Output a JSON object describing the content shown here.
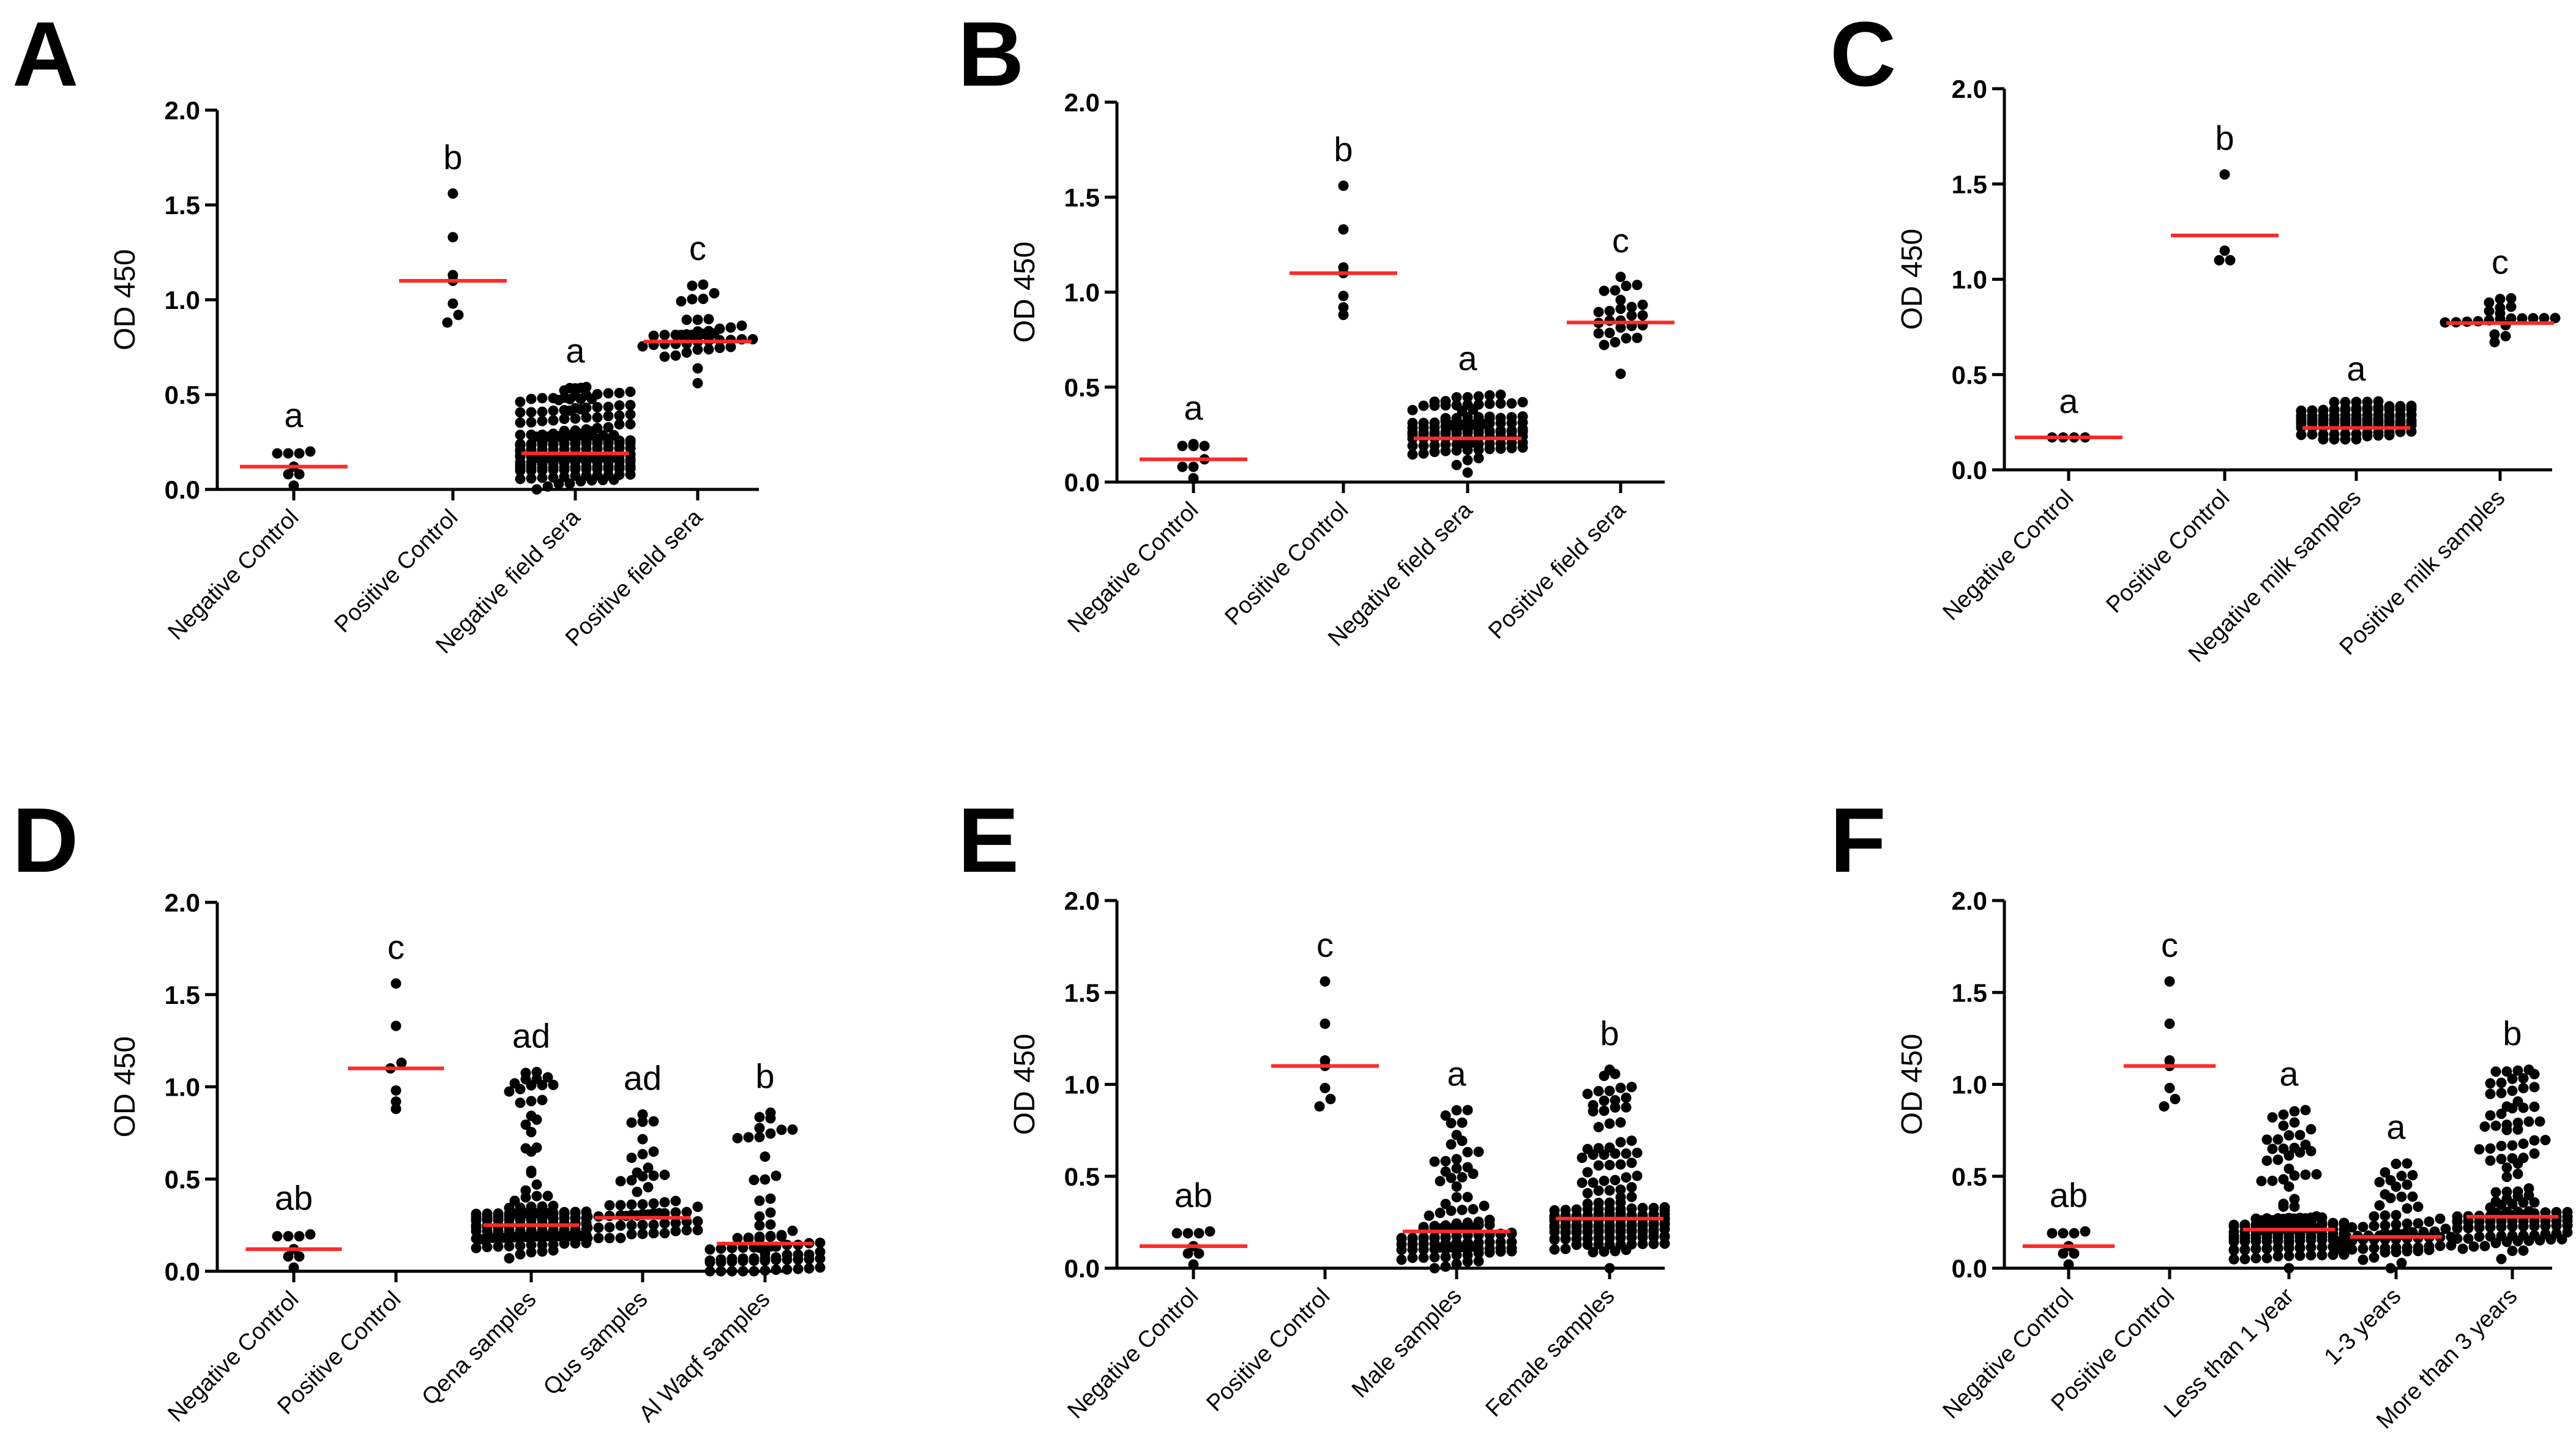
{
  "chart_data": [
    {
      "type": "scatter",
      "panel": "A",
      "ylabel": "OD 450",
      "ylim": [
        0,
        2.0
      ],
      "yticks": [
        "0.0",
        "0.5",
        "1.0",
        "1.5",
        "2.0"
      ],
      "categories": [
        "Negative Control",
        "Positive Control",
        "Negative field sera",
        "Positive field sera"
      ],
      "means": [
        0.12,
        1.1,
        0.19,
        0.78
      ],
      "significance": [
        "a",
        "b",
        "a",
        "c"
      ],
      "points": [
        [
          0.02,
          0.08,
          0.08,
          0.12,
          0.19,
          0.19,
          0.19,
          0.2
        ],
        [
          0.88,
          0.92,
          0.98,
          1.1,
          1.13,
          1.33,
          1.56
        ],
        {
          "n": 220,
          "min": 0.0,
          "max": 0.54,
          "mode": 0.15
        },
        {
          "n": 40,
          "min": 0.56,
          "max": 1.08,
          "mode": 0.78
        }
      ]
    },
    {
      "type": "scatter",
      "panel": "B",
      "ylabel": "OD 450",
      "ylim": [
        0,
        2.0
      ],
      "yticks": [
        "0.0",
        "0.5",
        "1.0",
        "1.5",
        "2.0"
      ],
      "categories": [
        "Negative Control",
        "Positive Control",
        "Negative field sera",
        "Positive field sera"
      ],
      "means": [
        0.12,
        1.1,
        0.23,
        0.84
      ],
      "significance": [
        "a",
        "b",
        "a",
        "c"
      ],
      "points": [
        [
          0.02,
          0.08,
          0.08,
          0.12,
          0.19,
          0.19,
          0.19,
          0.2
        ],
        [
          0.88,
          0.92,
          0.98,
          1.1,
          1.13,
          1.33,
          1.56
        ],
        {
          "n": 110,
          "min": 0.05,
          "max": 0.46,
          "mode": 0.22
        },
        {
          "n": 24,
          "min": 0.57,
          "max": 1.08,
          "mode": 0.84
        }
      ]
    },
    {
      "type": "scatter",
      "panel": "C",
      "ylabel": "OD 450",
      "ylim": [
        0,
        2.0
      ],
      "yticks": [
        "0.0",
        "0.5",
        "1.0",
        "1.5",
        "2.0"
      ],
      "categories": [
        "Negative Control",
        "Positive Control",
        "Negative milk samples",
        "Positive milk samples"
      ],
      "means": [
        0.17,
        1.23,
        0.22,
        0.77
      ],
      "significance": [
        "a",
        "b",
        "a",
        "c"
      ],
      "points": [
        [
          0.17,
          0.17,
          0.17,
          0.17
        ],
        [
          1.1,
          1.1,
          1.15,
          1.55
        ],
        {
          "n": 110,
          "min": 0.16,
          "max": 0.34,
          "mode": 0.22
        },
        {
          "n": 20,
          "min": 0.67,
          "max": 0.9,
          "mode": 0.77
        }
      ]
    },
    {
      "type": "scatter",
      "panel": "D",
      "ylabel": "OD 450",
      "ylim": [
        0,
        2.0
      ],
      "yticks": [
        "0.0",
        "0.5",
        "1.0",
        "1.5",
        "2.0"
      ],
      "categories": [
        "Negative Control",
        "Positive Control",
        "Qena samples",
        "Qus samples",
        "Al Waqf samples"
      ],
      "means": [
        0.12,
        1.1,
        0.25,
        0.29,
        0.15
      ],
      "significance": [
        "ab",
        "c",
        "ad",
        "ad",
        "b"
      ],
      "points": [
        [
          0.02,
          0.08,
          0.08,
          0.12,
          0.19,
          0.19,
          0.19,
          0.2
        ],
        [
          0.88,
          0.92,
          0.98,
          1.1,
          1.13,
          1.33,
          1.56
        ],
        {
          "n": 150,
          "min": 0.07,
          "max": 1.08,
          "mode": 0.22
        },
        {
          "n": 60,
          "min": 0.18,
          "max": 0.85,
          "mode": 0.27
        },
        {
          "n": 75,
          "min": 0.0,
          "max": 0.86,
          "mode": 0.08
        }
      ]
    },
    {
      "type": "scatter",
      "panel": "E",
      "ylabel": "OD 450",
      "ylim": [
        0,
        2.0
      ],
      "yticks": [
        "0.0",
        "0.5",
        "1.0",
        "1.5",
        "2.0"
      ],
      "categories": [
        "Negative Control",
        "Positive Control",
        "Male samples",
        "Female samples"
      ],
      "means": [
        0.12,
        1.1,
        0.2,
        0.27
      ],
      "significance": [
        "ab",
        "c",
        "a",
        "b"
      ],
      "points": [
        [
          0.02,
          0.08,
          0.08,
          0.12,
          0.19,
          0.19,
          0.19,
          0.2
        ],
        [
          0.88,
          0.92,
          0.98,
          1.1,
          1.13,
          1.33,
          1.56
        ],
        {
          "n": 110,
          "min": 0.0,
          "max": 0.86,
          "mode": 0.14
        },
        {
          "n": 190,
          "min": 0.0,
          "max": 1.08,
          "mode": 0.2
        }
      ]
    },
    {
      "type": "scatter",
      "panel": "F",
      "ylabel": "OD 450",
      "ylim": [
        0,
        2.0
      ],
      "yticks": [
        "0.0",
        "0.5",
        "1.0",
        "1.5",
        "2.0"
      ],
      "categories": [
        "Negative Control",
        "Positive Control",
        "Less than 1 year",
        "1-3 years",
        "More than 3 years"
      ],
      "means": [
        0.12,
        1.1,
        0.21,
        0.17,
        0.28
      ],
      "significance": [
        "ab",
        "c",
        "a",
        "a",
        "b"
      ],
      "points": [
        [
          0.02,
          0.08,
          0.08,
          0.12,
          0.19,
          0.19,
          0.19,
          0.2
        ],
        [
          0.88,
          0.92,
          0.98,
          1.1,
          1.13,
          1.33,
          1.56
        ],
        {
          "n": 150,
          "min": 0.0,
          "max": 0.86,
          "mode": 0.15
        },
        {
          "n": 70,
          "min": 0.0,
          "max": 0.57,
          "mode": 0.14
        },
        {
          "n": 140,
          "min": 0.05,
          "max": 1.08,
          "mode": 0.22
        }
      ]
    }
  ],
  "colors": {
    "mean_line": "#ff2a2a",
    "dots": "#000000",
    "axes": "#000000"
  }
}
